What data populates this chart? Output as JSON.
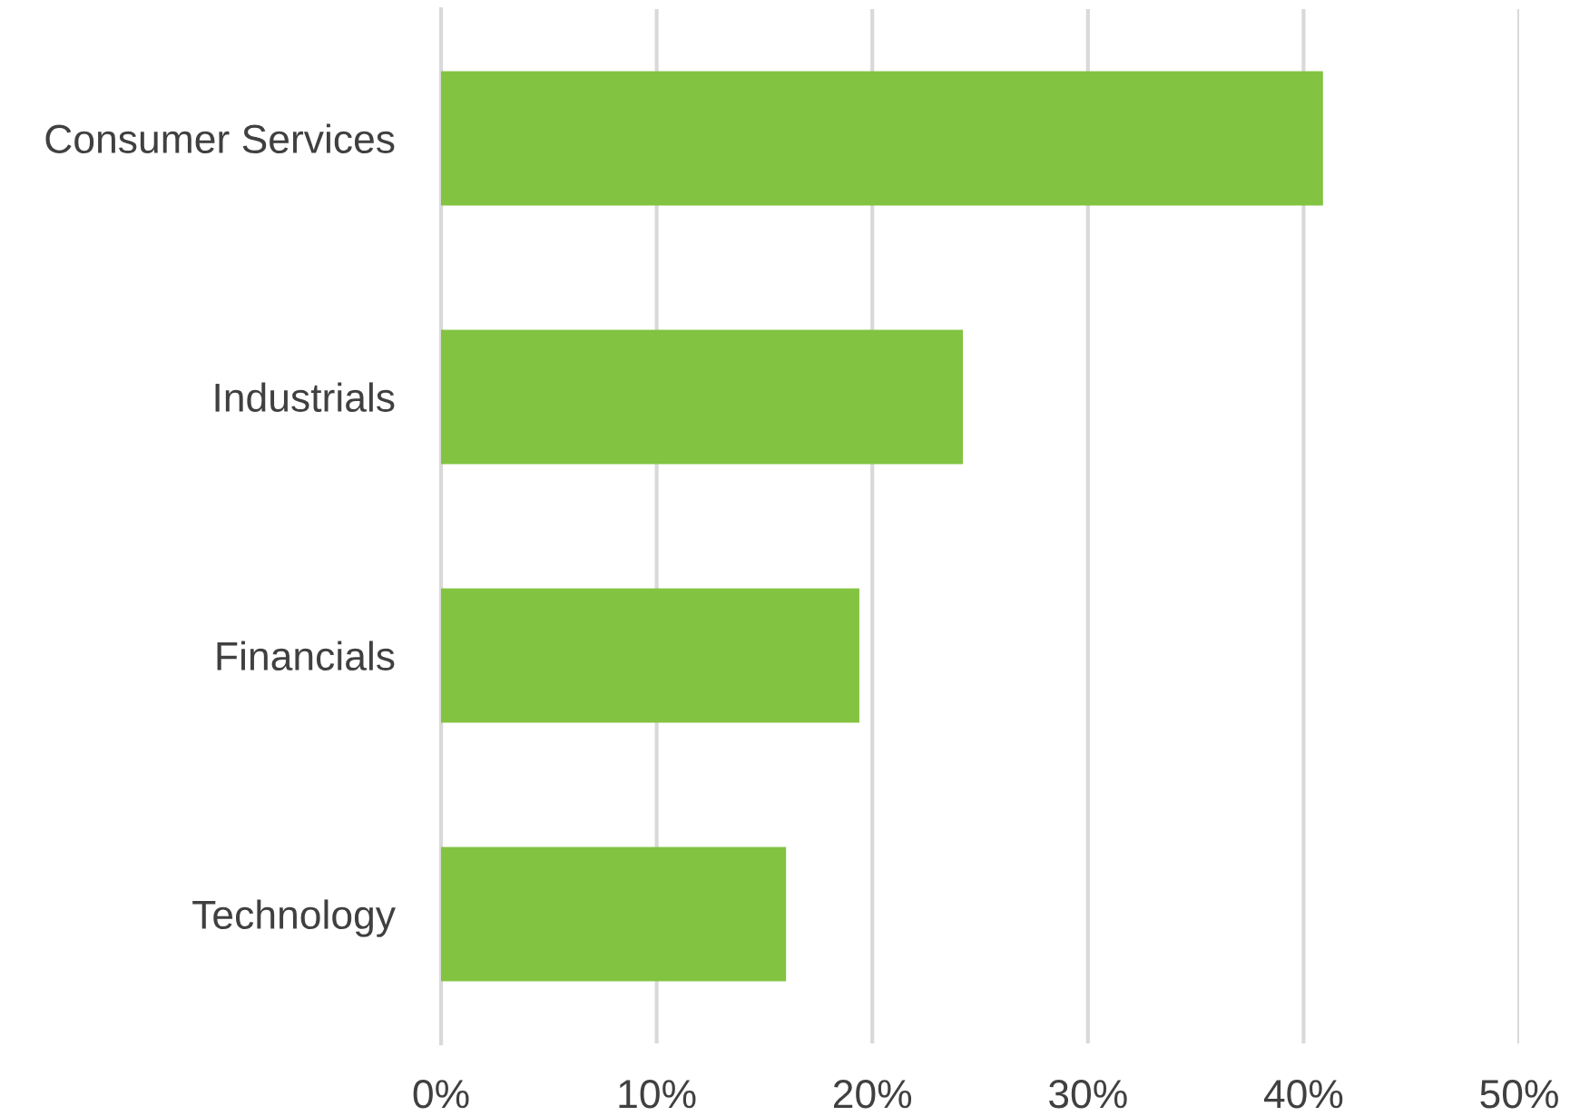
{
  "chart_data": {
    "type": "bar",
    "orientation": "horizontal",
    "categories": [
      "Consumer Services",
      "Industrials",
      "Financials",
      "Technology"
    ],
    "values": [
      40.9,
      24.2,
      19.4,
      16.0
    ],
    "color": "#82c341",
    "xlim": [
      0,
      50
    ],
    "xticks": [
      {
        "value": 0,
        "label": "0%"
      },
      {
        "value": 10,
        "label": "10%"
      },
      {
        "value": 20,
        "label": "20%"
      },
      {
        "value": 30,
        "label": "30%"
      },
      {
        "value": 40,
        "label": "40%"
      },
      {
        "value": 50,
        "label": "50%"
      }
    ],
    "grid": "x",
    "legend": false
  }
}
